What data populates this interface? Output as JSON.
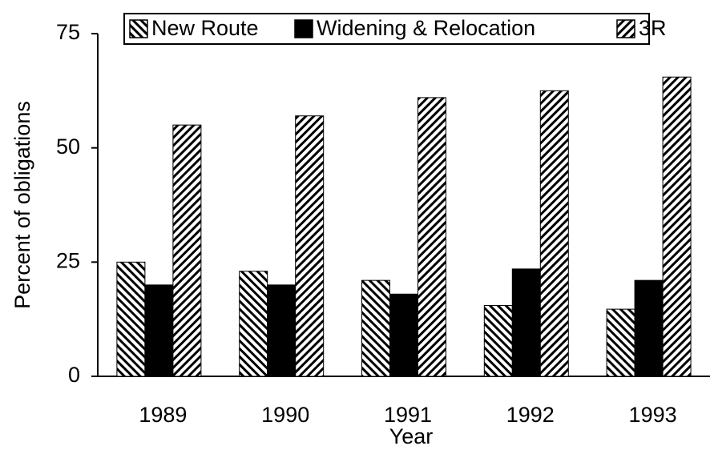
{
  "chart_data": {
    "type": "bar",
    "categories": [
      "1989",
      "1990",
      "1991",
      "1992",
      "1993"
    ],
    "series": [
      {
        "name": "New Route",
        "color": "#000000",
        "pattern": "backslash",
        "values": [
          25,
          23,
          21,
          15.5,
          14.7
        ]
      },
      {
        "name": "Widening & Relocation",
        "color": "#000000",
        "pattern": "solid",
        "values": [
          20,
          20,
          18,
          23.5,
          21
        ]
      },
      {
        "name": "3R",
        "color": "#000000",
        "pattern": "slash",
        "values": [
          55,
          57,
          61,
          62.5,
          65.5
        ]
      }
    ],
    "xlabel": "Year",
    "ylabel": "Percent of obligations",
    "ylim": [
      0,
      75
    ],
    "yticks": [
      0,
      25,
      50,
      75
    ],
    "grid": false,
    "legend": "top"
  }
}
